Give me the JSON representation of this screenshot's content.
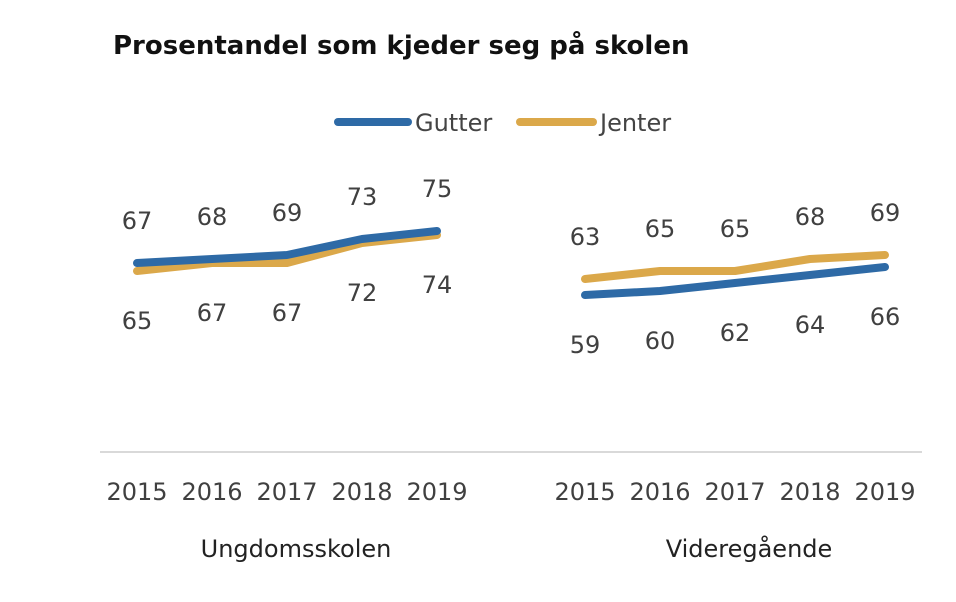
{
  "chart_data": {
    "type": "line",
    "title": "Prosentandel som kjeder seg på skolen",
    "legend": [
      {
        "name": "Gutter",
        "color": "#2e6aa6"
      },
      {
        "name": "Jenter",
        "color": "#dba84a"
      }
    ],
    "legend_position": "top",
    "categories": [
      "2015",
      "2016",
      "2017",
      "2018",
      "2019"
    ],
    "groups": [
      {
        "name": "Ungdomsskolen",
        "series": [
          {
            "name": "Gutter",
            "values": [
              67,
              68,
              69,
              73,
              75
            ]
          },
          {
            "name": "Jenter",
            "values": [
              65,
              67,
              67,
              72,
              74
            ]
          }
        ]
      },
      {
        "name": "Videregående",
        "series": [
          {
            "name": "Gutter",
            "values": [
              59,
              60,
              62,
              64,
              66
            ]
          },
          {
            "name": "Jenter",
            "values": [
              63,
              65,
              65,
              68,
              69
            ]
          }
        ]
      }
    ],
    "ylim": [
      0,
      100
    ],
    "grid": false,
    "xlabel": "",
    "ylabel": ""
  }
}
